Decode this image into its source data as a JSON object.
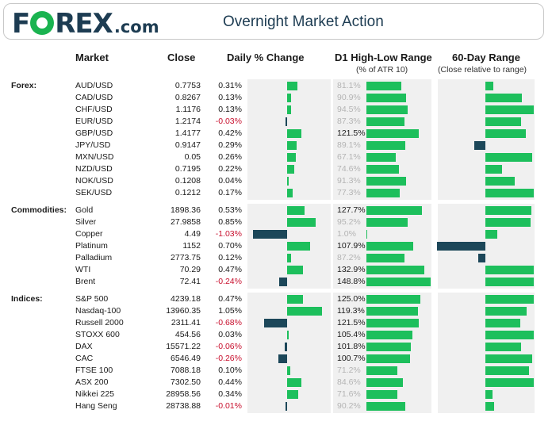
{
  "header": {
    "logo_pre": "F",
    "logo_post": "REX",
    "logo_suffix": ".com",
    "title": "Overnight Market Action"
  },
  "columns": {
    "market": "Market",
    "close": "Close",
    "daily": "Daily % Change",
    "d1": "D1 High-Low Range",
    "d1_sub": "(% of ATR 10)",
    "range60": "60-Day Range",
    "range60_sub": "(Close relative to range)"
  },
  "colors": {
    "up": "#1dbf5c",
    "down": "#1c4759",
    "neg_text": "#c8102e"
  },
  "sections": [
    {
      "label": "Forex:",
      "rows": [
        {
          "name": "AUD/USD",
          "close": "0.7753",
          "change": "0.31%",
          "change_val": 0.31,
          "range": "81.1%",
          "range_val": 81.1,
          "pos": 0.17
        },
        {
          "name": "CAD/USD",
          "close": "0.8267",
          "change": "0.13%",
          "change_val": 0.13,
          "range": "90.9%",
          "range_val": 90.9,
          "pos": 0.75
        },
        {
          "name": "CHF/USD",
          "close": "1.1176",
          "change": "0.13%",
          "change_val": 0.13,
          "range": "94.5%",
          "range_val": 94.5,
          "pos": 1.0
        },
        {
          "name": "EUR/USD",
          "close": "1.2174",
          "change": "-0.03%",
          "change_val": -0.03,
          "range": "87.3%",
          "range_val": 87.3,
          "pos": 0.73
        },
        {
          "name": "GBP/USD",
          "close": "1.4177",
          "change": "0.42%",
          "change_val": 0.42,
          "range": "121.5%",
          "range_val": 121.5,
          "pos": 0.83
        },
        {
          "name": "JPY/USD",
          "close": "0.9147",
          "change": "0.29%",
          "change_val": 0.29,
          "range": "89.1%",
          "range_val": 89.1,
          "pos": -0.23
        },
        {
          "name": "MXN/USD",
          "close": "0.05",
          "change": "0.26%",
          "change_val": 0.26,
          "range": "67.1%",
          "range_val": 67.1,
          "pos": 0.97
        },
        {
          "name": "NZD/USD",
          "close": "0.7195",
          "change": "0.22%",
          "change_val": 0.22,
          "range": "74.6%",
          "range_val": 74.6,
          "pos": 0.35
        },
        {
          "name": "NOK/USD",
          "close": "0.1208",
          "change": "0.04%",
          "change_val": 0.04,
          "range": "91.3%",
          "range_val": 91.3,
          "pos": 0.6
        },
        {
          "name": "SEK/USD",
          "close": "0.1212",
          "change": "0.17%",
          "change_val": 0.17,
          "range": "77.3%",
          "range_val": 77.3,
          "pos": 1.0
        }
      ]
    },
    {
      "label": "Commodities:",
      "rows": [
        {
          "name": "Gold",
          "close": "1898.36",
          "change": "0.53%",
          "change_val": 0.53,
          "range": "127.7%",
          "range_val": 127.7,
          "pos": 0.95
        },
        {
          "name": "Silver",
          "close": "27.9858",
          "change": "0.85%",
          "change_val": 0.85,
          "range": "95.2%",
          "range_val": 95.2,
          "pos": 0.93
        },
        {
          "name": "Copper",
          "close": "4.49",
          "change": "-1.03%",
          "change_val": -1.03,
          "range": "1.0%",
          "range_val": 1.0,
          "pos": 0.25
        },
        {
          "name": "Platinum",
          "close": "1152",
          "change": "0.70%",
          "change_val": 0.7,
          "range": "107.9%",
          "range_val": 107.9,
          "pos": -1.0
        },
        {
          "name": "Palladium",
          "close": "2773.75",
          "change": "0.12%",
          "change_val": 0.12,
          "range": "87.2%",
          "range_val": 87.2,
          "pos": -0.15
        },
        {
          "name": "WTI",
          "close": "70.29",
          "change": "0.47%",
          "change_val": 0.47,
          "range": "132.9%",
          "range_val": 132.9,
          "pos": 1.0
        },
        {
          "name": "Brent",
          "close": "72.41",
          "change": "-0.24%",
          "change_val": -0.24,
          "range": "148.8%",
          "range_val": 148.8,
          "pos": 1.0
        }
      ]
    },
    {
      "label": "Indices:",
      "rows": [
        {
          "name": "S&P 500",
          "close": "4239.18",
          "change": "0.47%",
          "change_val": 0.47,
          "range": "125.0%",
          "range_val": 125.0,
          "pos": 1.0
        },
        {
          "name": "Nasdaq-100",
          "close": "13960.35",
          "change": "1.05%",
          "change_val": 1.05,
          "range": "119.3%",
          "range_val": 119.3,
          "pos": 0.85
        },
        {
          "name": "Russell 2000",
          "close": "2311.41",
          "change": "-0.68%",
          "change_val": -0.68,
          "range": "121.5%",
          "range_val": 121.5,
          "pos": 0.72
        },
        {
          "name": "STOXX 600",
          "close": "454.56",
          "change": "0.03%",
          "change_val": 0.03,
          "range": "105.4%",
          "range_val": 105.4,
          "pos": 1.0
        },
        {
          "name": "DAX",
          "close": "15571.22",
          "change": "-0.06%",
          "change_val": -0.06,
          "range": "101.8%",
          "range_val": 101.8,
          "pos": 0.73
        },
        {
          "name": "CAC",
          "close": "6546.49",
          "change": "-0.26%",
          "change_val": -0.26,
          "range": "100.7%",
          "range_val": 100.7,
          "pos": 0.97
        },
        {
          "name": "FTSE 100",
          "close": "7088.18",
          "change": "0.10%",
          "change_val": 0.1,
          "range": "71.2%",
          "range_val": 71.2,
          "pos": 0.9
        },
        {
          "name": "ASX 200",
          "close": "7302.50",
          "change": "0.44%",
          "change_val": 0.44,
          "range": "84.6%",
          "range_val": 84.6,
          "pos": 1.0
        },
        {
          "name": "Nikkei 225",
          "close": "28958.56",
          "change": "0.34%",
          "change_val": 0.34,
          "range": "71.6%",
          "range_val": 71.6,
          "pos": 0.15
        },
        {
          "name": "Hang Seng",
          "close": "28738.88",
          "change": "-0.01%",
          "change_val": -0.01,
          "range": "90.2%",
          "range_val": 90.2,
          "pos": 0.18
        }
      ]
    }
  ]
}
